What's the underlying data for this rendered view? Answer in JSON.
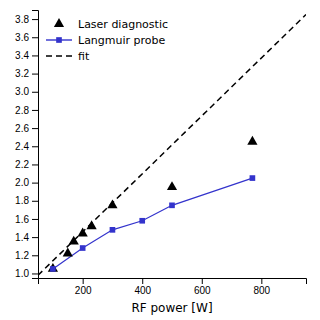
{
  "chart_data": {
    "type": "line",
    "xlabel": "RF power [W]",
    "xlim": [
      50,
      950
    ],
    "ylim": [
      0.95,
      3.9
    ],
    "xticks": [
      200,
      400,
      600,
      800
    ],
    "yticks": [
      {
        "value": 1.0,
        "label": "1.0"
      },
      1.2,
      1.4,
      1.6,
      1.8,
      {
        "value": 2.0,
        "label": "2.0"
      },
      2.2,
      2.4,
      2.6,
      2.8,
      {
        "value": 3.0,
        "label": "3.0"
      },
      3.2,
      3.4,
      3.6,
      3.8
    ],
    "legend": "upper left",
    "series": [
      {
        "name": "Laser diagnostic",
        "type": "scatter",
        "color": "black",
        "marker": "triangle",
        "line_style": "none",
        "x": [
          100,
          150,
          170,
          200,
          230,
          300,
          500,
          770
        ],
        "values": [
          1.05,
          1.22,
          1.35,
          1.44,
          1.52,
          1.75,
          1.95,
          2.45
        ]
      },
      {
        "name": "Langmuir probe",
        "type": "line",
        "color": "#3333cc",
        "marker": "square",
        "line_style": "solid",
        "x": [
          100,
          200,
          300,
          400,
          500,
          770
        ],
        "values": [
          1.05,
          1.28,
          1.48,
          1.58,
          1.75,
          2.05
        ]
      },
      {
        "name": "fit",
        "type": "line",
        "color": "black",
        "marker": "none",
        "line_style": "dashed",
        "x": [
          50,
          950
        ],
        "values": [
          0.98,
          3.85
        ]
      }
    ]
  }
}
